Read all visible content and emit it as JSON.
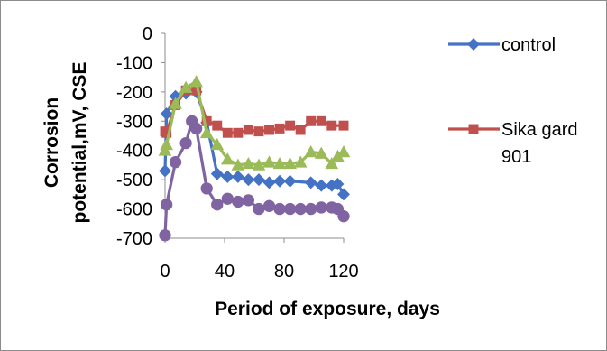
{
  "chart_data": {
    "type": "line",
    "title": "",
    "xlabel": "Period of exposure, days",
    "ylabel_lines": [
      "Corrosion",
      "potential,mV,  CSE"
    ],
    "xlim": [
      0,
      120
    ],
    "ylim": [
      -700,
      0
    ],
    "xticks": [
      "0",
      "40",
      "80",
      "120"
    ],
    "yticks": [
      "0",
      "-100",
      "-200",
      "-300",
      "-400",
      "-500",
      "-600",
      "-700"
    ],
    "grid": false,
    "legend_position": "right",
    "series": [
      {
        "name": "control",
        "legend_lines": [
          "control"
        ],
        "color": "#4472C4",
        "marker": "diamond",
        "points": [
          [
            0,
            -470
          ],
          [
            1,
            -275
          ],
          [
            7,
            -215
          ],
          [
            14,
            -205
          ],
          [
            21,
            -200
          ],
          [
            28,
            -305
          ],
          [
            35,
            -480
          ],
          [
            42,
            -490
          ],
          [
            49,
            -490
          ],
          [
            56,
            -500
          ],
          [
            63,
            -500
          ],
          [
            70,
            -510
          ],
          [
            77,
            -505
          ],
          [
            84,
            -505
          ],
          [
            98,
            -510
          ],
          [
            105,
            -520
          ],
          [
            112,
            -520
          ],
          [
            116,
            -515
          ],
          [
            120,
            -550
          ]
        ]
      },
      {
        "name": "Sika gard 901",
        "legend_lines": [
          "Sika gard",
          "901"
        ],
        "color": "#C0504D",
        "marker": "square",
        "points": [
          [
            0,
            -335
          ],
          [
            1,
            -340
          ],
          [
            7,
            -245
          ],
          [
            14,
            -195
          ],
          [
            21,
            -195
          ],
          [
            28,
            -300
          ],
          [
            35,
            -315
          ],
          [
            42,
            -340
          ],
          [
            49,
            -340
          ],
          [
            56,
            -330
          ],
          [
            63,
            -335
          ],
          [
            70,
            -330
          ],
          [
            77,
            -325
          ],
          [
            84,
            -315
          ],
          [
            91,
            -330
          ],
          [
            98,
            -300
          ],
          [
            105,
            -300
          ],
          [
            112,
            -315
          ],
          [
            120,
            -315
          ]
        ]
      },
      {
        "name": "",
        "legend_lines": [],
        "color": "#9BBB59",
        "marker": "triangle",
        "points": [
          [
            0,
            -400
          ],
          [
            1,
            -380
          ],
          [
            7,
            -240
          ],
          [
            14,
            -185
          ],
          [
            21,
            -165
          ],
          [
            28,
            -340
          ],
          [
            35,
            -380
          ],
          [
            42,
            -430
          ],
          [
            49,
            -450
          ],
          [
            56,
            -445
          ],
          [
            63,
            -450
          ],
          [
            70,
            -440
          ],
          [
            77,
            -445
          ],
          [
            84,
            -445
          ],
          [
            91,
            -440
          ],
          [
            98,
            -405
          ],
          [
            105,
            -410
          ],
          [
            112,
            -445
          ],
          [
            116,
            -420
          ],
          [
            120,
            -405
          ]
        ]
      },
      {
        "name": "",
        "legend_lines": [],
        "color": "#8064A2",
        "marker": "circle",
        "points": [
          [
            0,
            -690
          ],
          [
            1,
            -585
          ],
          [
            7,
            -440
          ],
          [
            14,
            -375
          ],
          [
            18,
            -300
          ],
          [
            21,
            -325
          ],
          [
            28,
            -530
          ],
          [
            35,
            -585
          ],
          [
            42,
            -565
          ],
          [
            49,
            -575
          ],
          [
            56,
            -570
          ],
          [
            63,
            -600
          ],
          [
            70,
            -590
          ],
          [
            77,
            -600
          ],
          [
            84,
            -600
          ],
          [
            91,
            -600
          ],
          [
            98,
            -600
          ],
          [
            105,
            -595
          ],
          [
            112,
            -595
          ],
          [
            116,
            -600
          ],
          [
            120,
            -625
          ]
        ]
      }
    ]
  }
}
